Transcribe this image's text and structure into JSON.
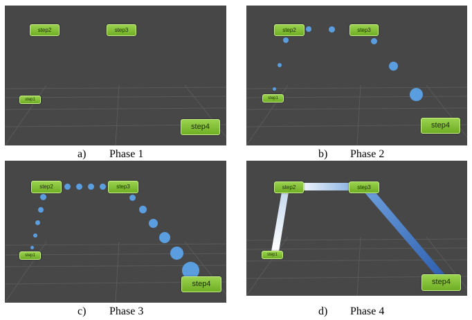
{
  "step_labels": {
    "step1": "step1",
    "step2": "step2",
    "step3": "step3",
    "step4": "step4"
  },
  "panels": [
    {
      "letter": "a)",
      "title": "Phase 1"
    },
    {
      "letter": "b)",
      "title": "Phase 2"
    },
    {
      "letter": "c)",
      "title": "Phase 3"
    },
    {
      "letter": "d)",
      "title": "Phase 4"
    }
  ],
  "colors": {
    "background": "#474747",
    "node": "#86c43a",
    "dot": "#5b9ee0",
    "edge_light": "#e6eef8",
    "edge_dark": "#2f64b8"
  }
}
